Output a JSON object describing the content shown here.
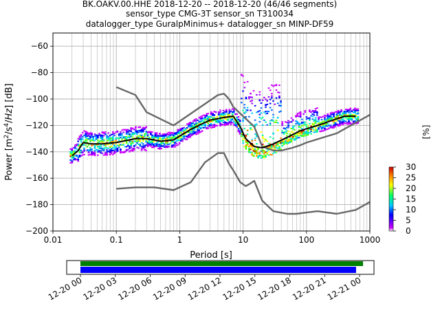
{
  "chart_data": [
    {
      "type": "line",
      "title_lines": [
        "BK.OAKV.00.HHE   2018-12-20 -- 2018-12-20  (46/46 segments)",
        "sensor_type CMG-3T sensor_sn T310034",
        "datalogger_type GuralpMinimus+ datalogger_sn MINP-DF59"
      ],
      "xlabel": "Period [s]",
      "ylabel": "Power [$m^2/s^4/Hz$] [dB]",
      "xscale": "log",
      "xlim": [
        0.01,
        1000
      ],
      "ylim": [
        -200,
        -50
      ],
      "x_ticks": [
        0.01,
        0.1,
        1,
        10,
        100,
        1000
      ],
      "x_tick_labels": [
        "0.01",
        "0.1",
        "1",
        "10",
        "100",
        "1000"
      ],
      "y_ticks": [
        -200,
        -180,
        -160,
        -140,
        -120,
        -100,
        -80,
        -60
      ],
      "y_tick_labels": [
        "−200",
        "−180",
        "−160",
        "−140",
        "−120",
        "−100",
        "−80",
        "−60"
      ],
      "grid": true,
      "series": [
        {
          "color": "#666666",
          "x": [
            0.1,
            0.2,
            0.3,
            0.8,
            4,
            5,
            6,
            7,
            10,
            15,
            20,
            30,
            40,
            60,
            80,
            100,
            300,
            1000
          ],
          "y": [
            -91,
            -97,
            -110,
            -120,
            -97,
            -96,
            -100,
            -106,
            -113,
            -121,
            -136,
            -139,
            -139,
            -137,
            -135,
            -133,
            -126,
            -112
          ]
        },
        {
          "color": "#666666",
          "x": [
            0.1,
            0.2,
            0.4,
            0.8,
            1.5,
            2.5,
            4,
            5,
            6,
            7,
            9,
            11,
            13,
            15,
            20,
            30,
            50,
            70,
            100,
            150,
            300,
            600,
            1000
          ],
          "y": [
            -168,
            -167,
            -167,
            -169,
            -163,
            -148,
            -141,
            -141,
            -149,
            -154,
            -163,
            -166,
            -164,
            -162,
            -177,
            -185,
            -187,
            -187,
            -186,
            -185,
            -187,
            -184,
            -178
          ]
        },
        {
          "color": "#000000",
          "x": [
            0.02,
            0.025,
            0.03,
            0.04,
            0.06,
            0.1,
            0.2,
            0.3,
            0.5,
            0.8,
            1.5,
            2,
            3,
            5,
            7,
            9,
            11,
            15,
            20,
            30,
            50,
            80,
            150,
            300,
            400,
            600
          ],
          "y": [
            -143,
            -139,
            -133,
            -134,
            -134,
            -133,
            -130,
            -130,
            -132,
            -131,
            -123,
            -120,
            -116,
            -114,
            -113,
            -121,
            -130,
            -136,
            -137,
            -134,
            -129,
            -124,
            -120,
            -115,
            -113,
            -113
          ]
        }
      ],
      "colorbar": {
        "label": "[%]",
        "range": [
          0,
          30
        ],
        "ticks": [
          0,
          5,
          10,
          15,
          20,
          25,
          30
        ],
        "colormap": [
          "#ffffff",
          "#cc00ff",
          "#0000ff",
          "#00ccff",
          "#00ff66",
          "#ffff00",
          "#ff8800",
          "#cc0000"
        ]
      }
    },
    {
      "type": "timeline",
      "x_tick_labels": [
        "12-20 00",
        "12-20 03",
        "12-20 06",
        "12-20 09",
        "12-20 12",
        "12-20 15",
        "12-20 18",
        "12-20 21",
        "12-21 00"
      ],
      "bars": [
        {
          "color": "#008000",
          "start_hour": 0,
          "end_hour": 24.3
        },
        {
          "color": "#0000ff",
          "start_hour": 0,
          "end_hour": 23.7
        }
      ]
    }
  ]
}
